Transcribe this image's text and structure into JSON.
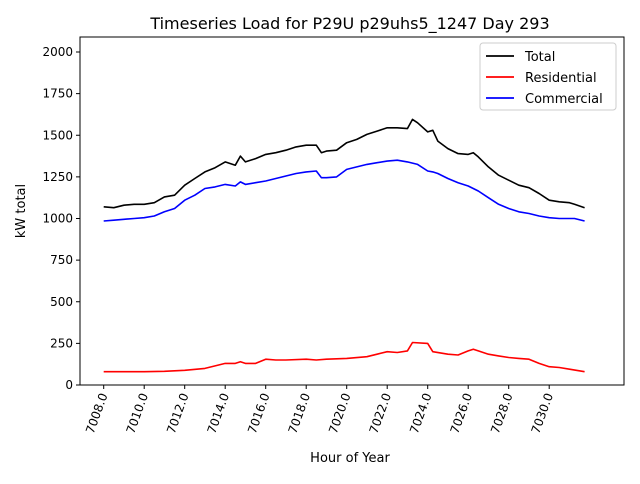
{
  "chart_data": {
    "type": "line",
    "title": "Timeseries Load for P29U p29uhs5_1247  Day 293",
    "xlabel": "Hour of Year",
    "ylabel": "kW total",
    "xlim": [
      7006.8,
      7032.9
    ],
    "ylim": [
      0,
      2100
    ],
    "xticks": [
      7008,
      7010,
      7012,
      7014,
      7016,
      7018,
      7020,
      7022,
      7024,
      7026,
      7028,
      7030
    ],
    "xtick_labels": [
      "7008.0",
      "7010.0",
      "7012.0",
      "7014.0",
      "7016.0",
      "7018.0",
      "7020.0",
      "7022.0",
      "7024.0",
      "7026.0",
      "7028.0",
      "7030.0"
    ],
    "yticks": [
      0,
      250,
      500,
      750,
      1000,
      1250,
      1500,
      1750,
      2000
    ],
    "ytick_labels": [
      "0",
      "250",
      "500",
      "750",
      "1000",
      "1250",
      "1500",
      "1750",
      "2000"
    ],
    "grid": false,
    "legend_position": "top-right",
    "series": [
      {
        "name": "Total",
        "color": "#000000",
        "x": [
          7008,
          7008.5,
          7009,
          7009.5,
          7010,
          7010.5,
          7011,
          7011.5,
          7012,
          7012.5,
          7013,
          7013.5,
          7014,
          7014.5,
          7014.75,
          7015,
          7015.5,
          7016,
          7016.5,
          7017,
          7017.5,
          7018,
          7018.5,
          7018.75,
          7019,
          7019.5,
          7020,
          7020.5,
          7021,
          7021.5,
          7022,
          7022.5,
          7023,
          7023.25,
          7023.5,
          7024,
          7024.25,
          7024.5,
          7025,
          7025.5,
          7026,
          7026.25,
          7026.5,
          7027,
          7027.5,
          7028,
          7028.5,
          7029,
          7029.5,
          7030,
          7030.5,
          7031,
          7031.25,
          7031.75
        ],
        "y": [
          1070,
          1065,
          1080,
          1085,
          1085,
          1095,
          1130,
          1140,
          1200,
          1240,
          1280,
          1305,
          1340,
          1320,
          1375,
          1340,
          1360,
          1385,
          1395,
          1410,
          1430,
          1440,
          1440,
          1395,
          1405,
          1410,
          1455,
          1475,
          1505,
          1525,
          1545,
          1545,
          1540,
          1595,
          1575,
          1520,
          1530,
          1465,
          1420,
          1390,
          1385,
          1395,
          1370,
          1310,
          1260,
          1230,
          1200,
          1185,
          1150,
          1110,
          1100,
          1095,
          1085,
          1065
        ]
      },
      {
        "name": "Residential",
        "color": "#ff0000",
        "x": [
          7008,
          7009,
          7010,
          7011,
          7012,
          7013,
          7013.5,
          7014,
          7014.5,
          7014.75,
          7015,
          7015.5,
          7016,
          7016.5,
          7017,
          7018,
          7018.5,
          7019,
          7020,
          7021,
          7021.5,
          7022,
          7022.5,
          7023,
          7023.25,
          7024,
          7024.25,
          7025,
          7025.5,
          7026,
          7026.25,
          7026.5,
          7027,
          7027.5,
          7028,
          7028.5,
          7029,
          7029.5,
          7030,
          7030.5,
          7031,
          7031.75
        ],
        "y": [
          80,
          80,
          80,
          82,
          88,
          100,
          115,
          130,
          130,
          140,
          130,
          130,
          155,
          150,
          150,
          155,
          150,
          155,
          160,
          170,
          185,
          200,
          195,
          205,
          255,
          250,
          200,
          185,
          180,
          205,
          215,
          205,
          185,
          175,
          165,
          160,
          155,
          130,
          110,
          105,
          95,
          80
        ]
      },
      {
        "name": "Commercial",
        "color": "#0000ff",
        "x": [
          7008,
          7008.5,
          7009,
          7009.5,
          7010,
          7010.5,
          7011,
          7011.5,
          7012,
          7012.5,
          7013,
          7013.5,
          7014,
          7014.5,
          7014.75,
          7015,
          7015.5,
          7016,
          7016.5,
          7017,
          7017.5,
          7018,
          7018.5,
          7018.75,
          7019,
          7019.5,
          7020,
          7020.5,
          7021,
          7021.5,
          7022,
          7022.5,
          7023,
          7023.5,
          7024,
          7024.25,
          7024.5,
          7025,
          7025.5,
          7026,
          7026.5,
          7027,
          7027.5,
          7028,
          7028.5,
          7029,
          7029.5,
          7030,
          7030.5,
          7031,
          7031.25,
          7031.75
        ],
        "y": [
          985,
          990,
          995,
          1000,
          1005,
          1015,
          1040,
          1060,
          1110,
          1140,
          1180,
          1190,
          1205,
          1195,
          1220,
          1205,
          1215,
          1225,
          1240,
          1255,
          1270,
          1280,
          1285,
          1245,
          1245,
          1250,
          1295,
          1310,
          1325,
          1335,
          1345,
          1350,
          1340,
          1325,
          1285,
          1280,
          1270,
          1240,
          1215,
          1195,
          1165,
          1125,
          1085,
          1060,
          1040,
          1030,
          1015,
          1005,
          1000,
          1000,
          1000,
          985
        ]
      }
    ]
  }
}
